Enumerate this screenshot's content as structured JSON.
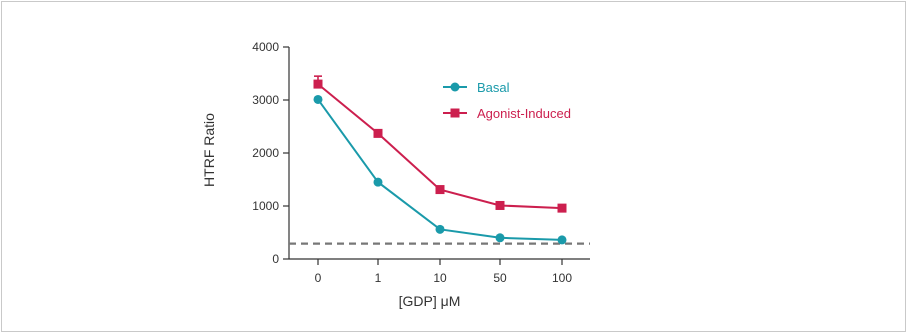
{
  "chart_data": {
    "type": "line",
    "categories": [
      "0",
      "1",
      "10",
      "50",
      "100"
    ],
    "xlabel": "[GDP] μM",
    "ylabel": "HTRF Ratio",
    "ylim": [
      0,
      4000
    ],
    "yticks": [
      0,
      1000,
      2000,
      3000,
      4000
    ],
    "grid": false,
    "legend_position": "top-right",
    "series": [
      {
        "name": "Basal",
        "color": "#1a9aaa",
        "marker": "circle",
        "values": [
          3010,
          1450,
          560,
          400,
          360
        ]
      },
      {
        "name": "Agonist-Induced",
        "color": "#cc1f4e",
        "marker": "square",
        "values": [
          3300,
          2370,
          1310,
          1010,
          960
        ],
        "error": [
          150,
          0,
          0,
          0,
          0
        ]
      }
    ],
    "reference_line": {
      "value": 290,
      "style": "dashed",
      "color": "#777777"
    }
  }
}
